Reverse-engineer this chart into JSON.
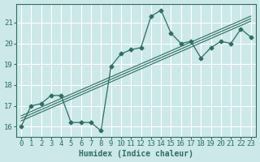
{
  "title": "",
  "xlabel": "Humidex (Indice chaleur)",
  "ylabel": "",
  "bg_color": "#cce8e8",
  "grid_color": "#ffffff",
  "line_color": "#2e6e62",
  "x_data": [
    0,
    1,
    2,
    3,
    4,
    5,
    6,
    7,
    8,
    9,
    10,
    11,
    12,
    13,
    14,
    15,
    16,
    17,
    18,
    19,
    20,
    21,
    22,
    23
  ],
  "y_data": [
    16.0,
    17.0,
    17.1,
    17.5,
    17.5,
    16.2,
    16.2,
    16.2,
    15.8,
    18.9,
    19.5,
    19.7,
    19.8,
    21.3,
    21.6,
    20.5,
    20.0,
    20.1,
    19.3,
    19.8,
    20.1,
    20.0,
    20.7,
    20.3
  ],
  "ylim": [
    15.5,
    21.9
  ],
  "xlim": [
    -0.5,
    23.5
  ],
  "yticks": [
    16,
    17,
    18,
    19,
    20,
    21
  ],
  "xticks": [
    0,
    1,
    2,
    3,
    4,
    5,
    6,
    7,
    8,
    9,
    10,
    11,
    12,
    13,
    14,
    15,
    16,
    17,
    18,
    19,
    20,
    21,
    22,
    23
  ],
  "regression_offsets": [
    -0.12,
    0.0,
    0.12
  ],
  "marker": "D",
  "markersize": 2.5,
  "linewidth": 0.9,
  "reg_linewidth": 0.8,
  "xlabel_fontsize": 7.0,
  "tick_fontsize": 6.5
}
